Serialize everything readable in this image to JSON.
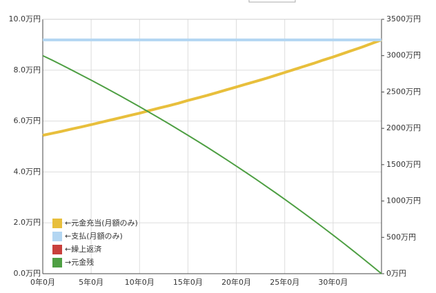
{
  "chart_data": {
    "type": "line",
    "x": [
      0,
      12,
      24,
      36,
      48,
      60,
      72,
      84,
      96,
      108,
      120,
      132,
      144,
      156,
      168,
      180,
      192,
      204,
      216,
      228,
      240,
      252,
      264,
      276,
      288,
      300,
      312,
      324,
      336,
      348,
      360,
      372,
      384,
      396,
      408,
      420
    ],
    "xlim": [
      0,
      420
    ],
    "xticks": [
      {
        "value": 0,
        "label": "0年0月"
      },
      {
        "value": 60,
        "label": "5年0月"
      },
      {
        "value": 120,
        "label": "10年0月"
      },
      {
        "value": 180,
        "label": "15年0月"
      },
      {
        "value": 240,
        "label": "20年0月"
      },
      {
        "value": 300,
        "label": "25年0月"
      },
      {
        "value": 360,
        "label": "30年0月"
      }
    ],
    "ylim": [
      0,
      10
    ],
    "yticks": [
      {
        "value": 0,
        "label": "0.0万円"
      },
      {
        "value": 2,
        "label": "2.0万円"
      },
      {
        "value": 4,
        "label": "4.0万円"
      },
      {
        "value": 6,
        "label": "6.0万円"
      },
      {
        "value": 8,
        "label": "8.0万円"
      },
      {
        "value": 10,
        "label": "10.0万円"
      }
    ],
    "y2lim": [
      0,
      3500
    ],
    "y2ticks": [
      {
        "value": 0,
        "label": "0万円"
      },
      {
        "value": 500,
        "label": "500万円"
      },
      {
        "value": 1000,
        "label": "1000万円"
      },
      {
        "value": 1500,
        "label": "1500万円"
      },
      {
        "value": 2000,
        "label": "2000万円"
      },
      {
        "value": 2500,
        "label": "2500万円"
      },
      {
        "value": 3000,
        "label": "3000万円"
      },
      {
        "value": 3500,
        "label": "3500万円"
      }
    ],
    "grid": true,
    "legend": "lower left",
    "series": [
      {
        "name": "←元金充当(月額のみ)",
        "color": "#e8bf3c",
        "width": 4,
        "values": [
          5.44,
          5.52,
          5.6,
          5.69,
          5.77,
          5.86,
          5.95,
          6.04,
          6.13,
          6.22,
          6.31,
          6.41,
          6.51,
          6.6,
          6.7,
          6.81,
          6.91,
          7.01,
          7.12,
          7.23,
          7.34,
          7.45,
          7.56,
          7.67,
          7.79,
          7.91,
          8.03,
          8.15,
          8.27,
          8.4,
          8.52,
          8.65,
          8.78,
          8.91,
          9.05,
          9.19
        ]
      },
      {
        "name": "←支払(月額のみ)",
        "color": "#b3d6f2",
        "width": 4,
        "values": [
          9.19,
          9.19,
          9.19,
          9.19,
          9.19,
          9.19,
          9.19,
          9.19,
          9.19,
          9.19,
          9.19,
          9.19,
          9.19,
          9.19,
          9.19,
          9.19,
          9.19,
          9.19,
          9.19,
          9.19,
          9.19,
          9.19,
          9.19,
          9.19,
          9.19,
          9.19,
          9.19,
          9.19,
          9.19,
          9.19,
          9.19,
          9.19,
          9.19,
          9.19,
          9.19,
          9.19
        ]
      },
      {
        "name": "←繰上返済",
        "color": "#c9403c",
        "width": 2,
        "values": [
          null,
          null,
          null,
          null,
          null,
          null,
          null,
          null,
          null,
          null,
          null,
          null,
          null,
          null,
          null,
          null,
          null,
          null,
          null,
          null,
          null,
          null,
          null,
          null,
          null,
          null,
          null,
          null,
          null,
          null,
          null,
          null,
          null,
          null,
          null,
          null
        ]
      },
      {
        "name": "→元金残",
        "color": "#4e9f43",
        "width": 2,
        "axis": "y2",
        "values": [
          3000,
          2936,
          2869,
          2801,
          2732,
          2663,
          2592,
          2520,
          2447,
          2373,
          2298,
          2221,
          2144,
          2065,
          1985,
          1904,
          1822,
          1739,
          1654,
          1568,
          1480,
          1392,
          1302,
          1210,
          1118,
          1024,
          928,
          831,
          732,
          632,
          531,
          428,
          323,
          217,
          109,
          0
        ]
      }
    ]
  }
}
